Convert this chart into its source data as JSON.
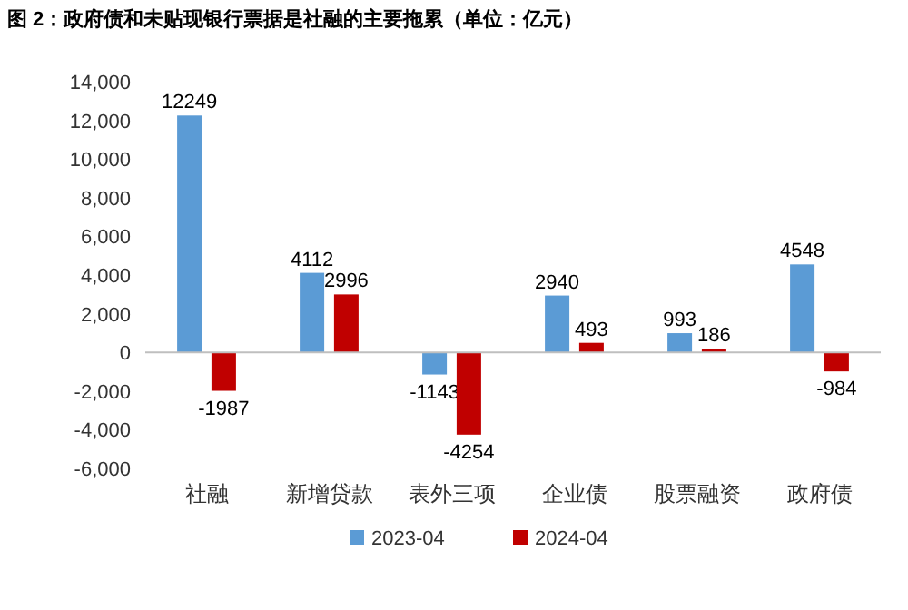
{
  "chart_data": {
    "type": "bar",
    "title": "图 2：政府债和未贴现银行票据是社融的主要拖累（单位：亿元）",
    "categories": [
      "社融",
      "新增贷款",
      "表外三项",
      "企业债",
      "股票融资",
      "政府债"
    ],
    "series": [
      {
        "name": "2023-04",
        "color": "#5b9bd5",
        "values": [
          12249,
          4112,
          -1143,
          2940,
          993,
          4548
        ]
      },
      {
        "name": "2024-04",
        "color": "#c00000",
        "values": [
          -1987,
          2996,
          -4254,
          493,
          186,
          -984
        ]
      }
    ],
    "ylim": [
      -6000,
      14000
    ],
    "yticks": [
      {
        "value": -6000,
        "label": "-6,000"
      },
      {
        "value": -4000,
        "label": "-4,000"
      },
      {
        "value": -2000,
        "label": "-2,000"
      },
      0,
      {
        "value": 2000,
        "label": "2,000"
      },
      {
        "value": 4000,
        "label": "4,000"
      },
      {
        "value": 6000,
        "label": "6,000"
      },
      {
        "value": 8000,
        "label": "8,000"
      },
      {
        "value": 10000,
        "label": "10,000"
      },
      {
        "value": 12000,
        "label": "12,000"
      },
      {
        "value": 14000,
        "label": "14,000"
      }
    ],
    "data_labels": true,
    "legend": "bottom"
  }
}
